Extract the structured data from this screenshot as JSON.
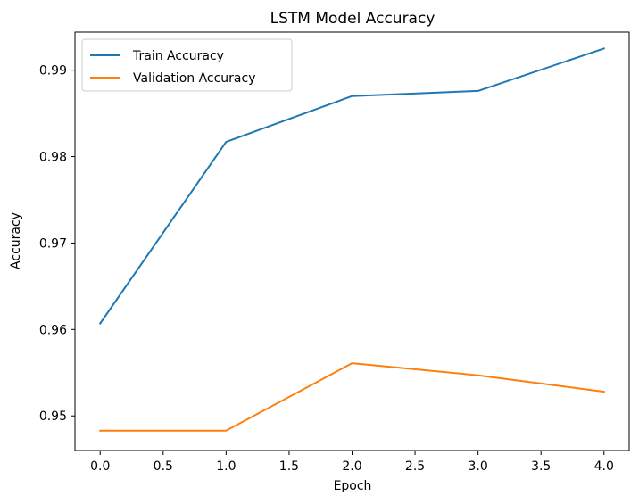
{
  "chart_data": {
    "type": "line",
    "title": "LSTM Model Accuracy",
    "xlabel": "Epoch",
    "ylabel": "Accuracy",
    "x": [
      0,
      1,
      2,
      3,
      4
    ],
    "xlim": [
      -0.2,
      4.2
    ],
    "ylim": [
      0.946,
      0.9944
    ],
    "x_ticks": [
      0.0,
      0.5,
      1.0,
      1.5,
      2.0,
      2.5,
      3.0,
      3.5,
      4.0
    ],
    "x_tick_labels": [
      "0.0",
      "0.5",
      "1.0",
      "1.5",
      "2.0",
      "2.5",
      "3.0",
      "3.5",
      "4.0"
    ],
    "y_ticks": [
      0.95,
      0.96,
      0.97,
      0.98,
      0.99
    ],
    "y_tick_labels": [
      "0.95",
      "0.96",
      "0.97",
      "0.98",
      "0.99"
    ],
    "grid": false,
    "legend_position": "upper-left",
    "series": [
      {
        "name": "Train Accuracy",
        "color": "#1f77b4",
        "values": [
          0.9607,
          0.9817,
          0.987,
          0.9876,
          0.9925
        ]
      },
      {
        "name": "Validation Accuracy",
        "color": "#ff7f0e",
        "values": [
          0.9483,
          0.9483,
          0.9561,
          0.9547,
          0.9528
        ]
      }
    ]
  }
}
